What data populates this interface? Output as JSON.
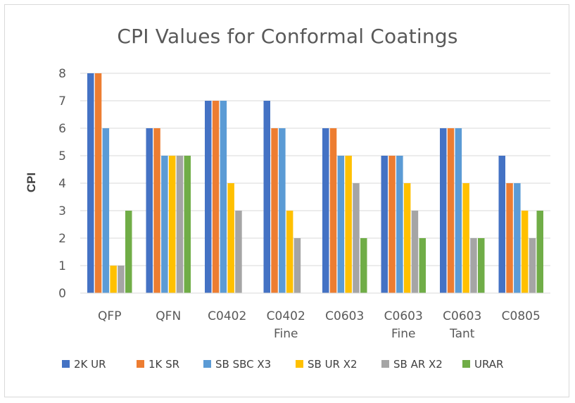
{
  "chart_data": {
    "type": "bar",
    "title": "CPI Values for Conformal Coatings",
    "xlabel": "",
    "ylabel": "CPI",
    "ylim": [
      0,
      8
    ],
    "yticks": [
      "0",
      "1",
      "2",
      "3",
      "4",
      "5",
      "6",
      "7",
      "8"
    ],
    "grid": true,
    "legend_position": "bottom",
    "categories": [
      [
        "QFP"
      ],
      [
        "QFN"
      ],
      [
        "C0402"
      ],
      [
        "C0402",
        "Fine"
      ],
      [
        "C0603"
      ],
      [
        "C0603",
        "Fine"
      ],
      [
        "C0603",
        "Tant"
      ],
      [
        "C0805"
      ]
    ],
    "series": [
      {
        "name": "2K UR",
        "color": "#4472c4",
        "values": [
          8,
          6,
          7,
          7,
          6,
          5,
          6,
          5
        ]
      },
      {
        "name": "1K SR",
        "color": "#ed7d31",
        "values": [
          8,
          6,
          7,
          6,
          6,
          5,
          6,
          4
        ]
      },
      {
        "name": "SB SBC X3",
        "color": "#5b9bd5",
        "values": [
          6,
          5,
          7,
          6,
          5,
          5,
          6,
          4
        ]
      },
      {
        "name": "SB UR X2",
        "color": "#ffc000",
        "values": [
          1,
          5,
          4,
          3,
          5,
          4,
          4,
          3
        ]
      },
      {
        "name": "SB AR X2",
        "color": "#a5a5a5",
        "values": [
          1,
          5,
          3,
          2,
          4,
          3,
          2,
          2
        ]
      },
      {
        "name": "URAR",
        "color": "#70ad47",
        "values": [
          3,
          5,
          0,
          0,
          2,
          2,
          2,
          3
        ]
      }
    ]
  }
}
